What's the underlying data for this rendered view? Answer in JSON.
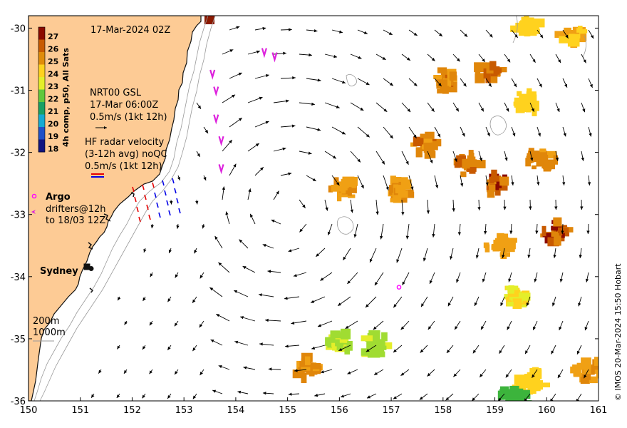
{
  "title": "17-Mar-2024 02Z",
  "credit": "© IMOS 20-Mar-2024 15:50 Hobart",
  "colorbar": {
    "label": "4h comp, p50, All Sats",
    "ticks": [
      "27",
      "26",
      "25",
      "24",
      "23",
      "22",
      "21",
      "20",
      "19",
      "18"
    ],
    "colors": [
      "#8b0a00",
      "#c85a00",
      "#e08c0a",
      "#ffd21e",
      "#e4ee2a",
      "#60c83c",
      "#18a064",
      "#14aad2",
      "#1e50c8",
      "#101480"
    ]
  },
  "legend": {
    "nrt": [
      "NRT00 GSL",
      "17-Mar 06:00Z",
      "0.5m/s (1kt 12h)"
    ],
    "hf": [
      "HF radar velocity",
      "(3-12h avg) noQC",
      "0.5m/s (1kt 12h)"
    ],
    "argo_label": "Argo",
    "drifters": [
      "drifters@12h",
      "to 18/03 12Z"
    ]
  },
  "places": [
    {
      "name": "Sydney",
      "lon": 151.21,
      "lat": -33.87
    }
  ],
  "bathymetry_labels": [
    "200m",
    "1000m"
  ],
  "axes": {
    "x_ticks": [
      150,
      151,
      152,
      153,
      154,
      155,
      156,
      157,
      158,
      159,
      160,
      161
    ],
    "y_ticks": [
      -30,
      -31,
      -32,
      -33,
      -34,
      -35,
      -36
    ]
  },
  "colors": {
    "land": "#fdcb95",
    "coast": "#111111",
    "arrow": "#000000",
    "hf_red": "#e60000",
    "hf_blue": "#0000e6",
    "argo": "#ff00ff",
    "drifter": "#dd22dd",
    "isobath": "#9a9a9a"
  },
  "chart_data": {
    "type": "map",
    "extent": {
      "lon": [
        150,
        161
      ],
      "lat": [
        -36,
        -29.8
      ]
    },
    "eddy": {
      "center_lon": 155.0,
      "center_lat": -32.9
    },
    "argo_floats": [
      {
        "lon": 157.15,
        "lat": -34.17
      }
    ],
    "drifters": [
      {
        "lon": 154.55,
        "lat": -30.38
      },
      {
        "lon": 154.75,
        "lat": -30.45
      },
      {
        "lon": 153.55,
        "lat": -30.73
      },
      {
        "lon": 153.62,
        "lat": -31.0
      },
      {
        "lon": 153.62,
        "lat": -31.45
      },
      {
        "lon": 153.72,
        "lat": -31.8
      },
      {
        "lon": 153.72,
        "lat": -32.25
      }
    ],
    "sst_patches": [
      {
        "lon": 159.6,
        "lat": -29.95,
        "t": 24.5
      },
      {
        "lon": 160.5,
        "lat": -30.1,
        "t": 24.8
      },
      {
        "lon": 158.05,
        "lat": -30.85,
        "t": 25.5
      },
      {
        "lon": 158.9,
        "lat": -30.7,
        "t": 25.6
      },
      {
        "lon": 159.6,
        "lat": -31.2,
        "t": 24.3
      },
      {
        "lon": 157.15,
        "lat": -32.6,
        "t": 25.3
      },
      {
        "lon": 156.1,
        "lat": -32.6,
        "t": 25.2
      },
      {
        "lon": 157.7,
        "lat": -31.9,
        "t": 25.5
      },
      {
        "lon": 158.5,
        "lat": -32.2,
        "t": 25.6
      },
      {
        "lon": 159.05,
        "lat": -32.5,
        "t": 25.8
      },
      {
        "lon": 159.9,
        "lat": -32.1,
        "t": 25.4
      },
      {
        "lon": 160.2,
        "lat": -33.3,
        "t": 25.8
      },
      {
        "lon": 159.1,
        "lat": -33.5,
        "t": 25.1
      },
      {
        "lon": 155.35,
        "lat": -35.45,
        "t": 25.4
      },
      {
        "lon": 159.7,
        "lat": -35.7,
        "t": 24.3
      },
      {
        "lon": 159.4,
        "lat": -35.92,
        "t": 21.5
      },
      {
        "lon": 160.8,
        "lat": -35.5,
        "t": 25.2
      },
      {
        "lon": 156.0,
        "lat": -35.05,
        "t": 22.8
      },
      {
        "lon": 156.7,
        "lat": -35.1,
        "t": 22.8
      },
      {
        "lon": 159.4,
        "lat": -34.3,
        "t": 24.0
      }
    ]
  }
}
